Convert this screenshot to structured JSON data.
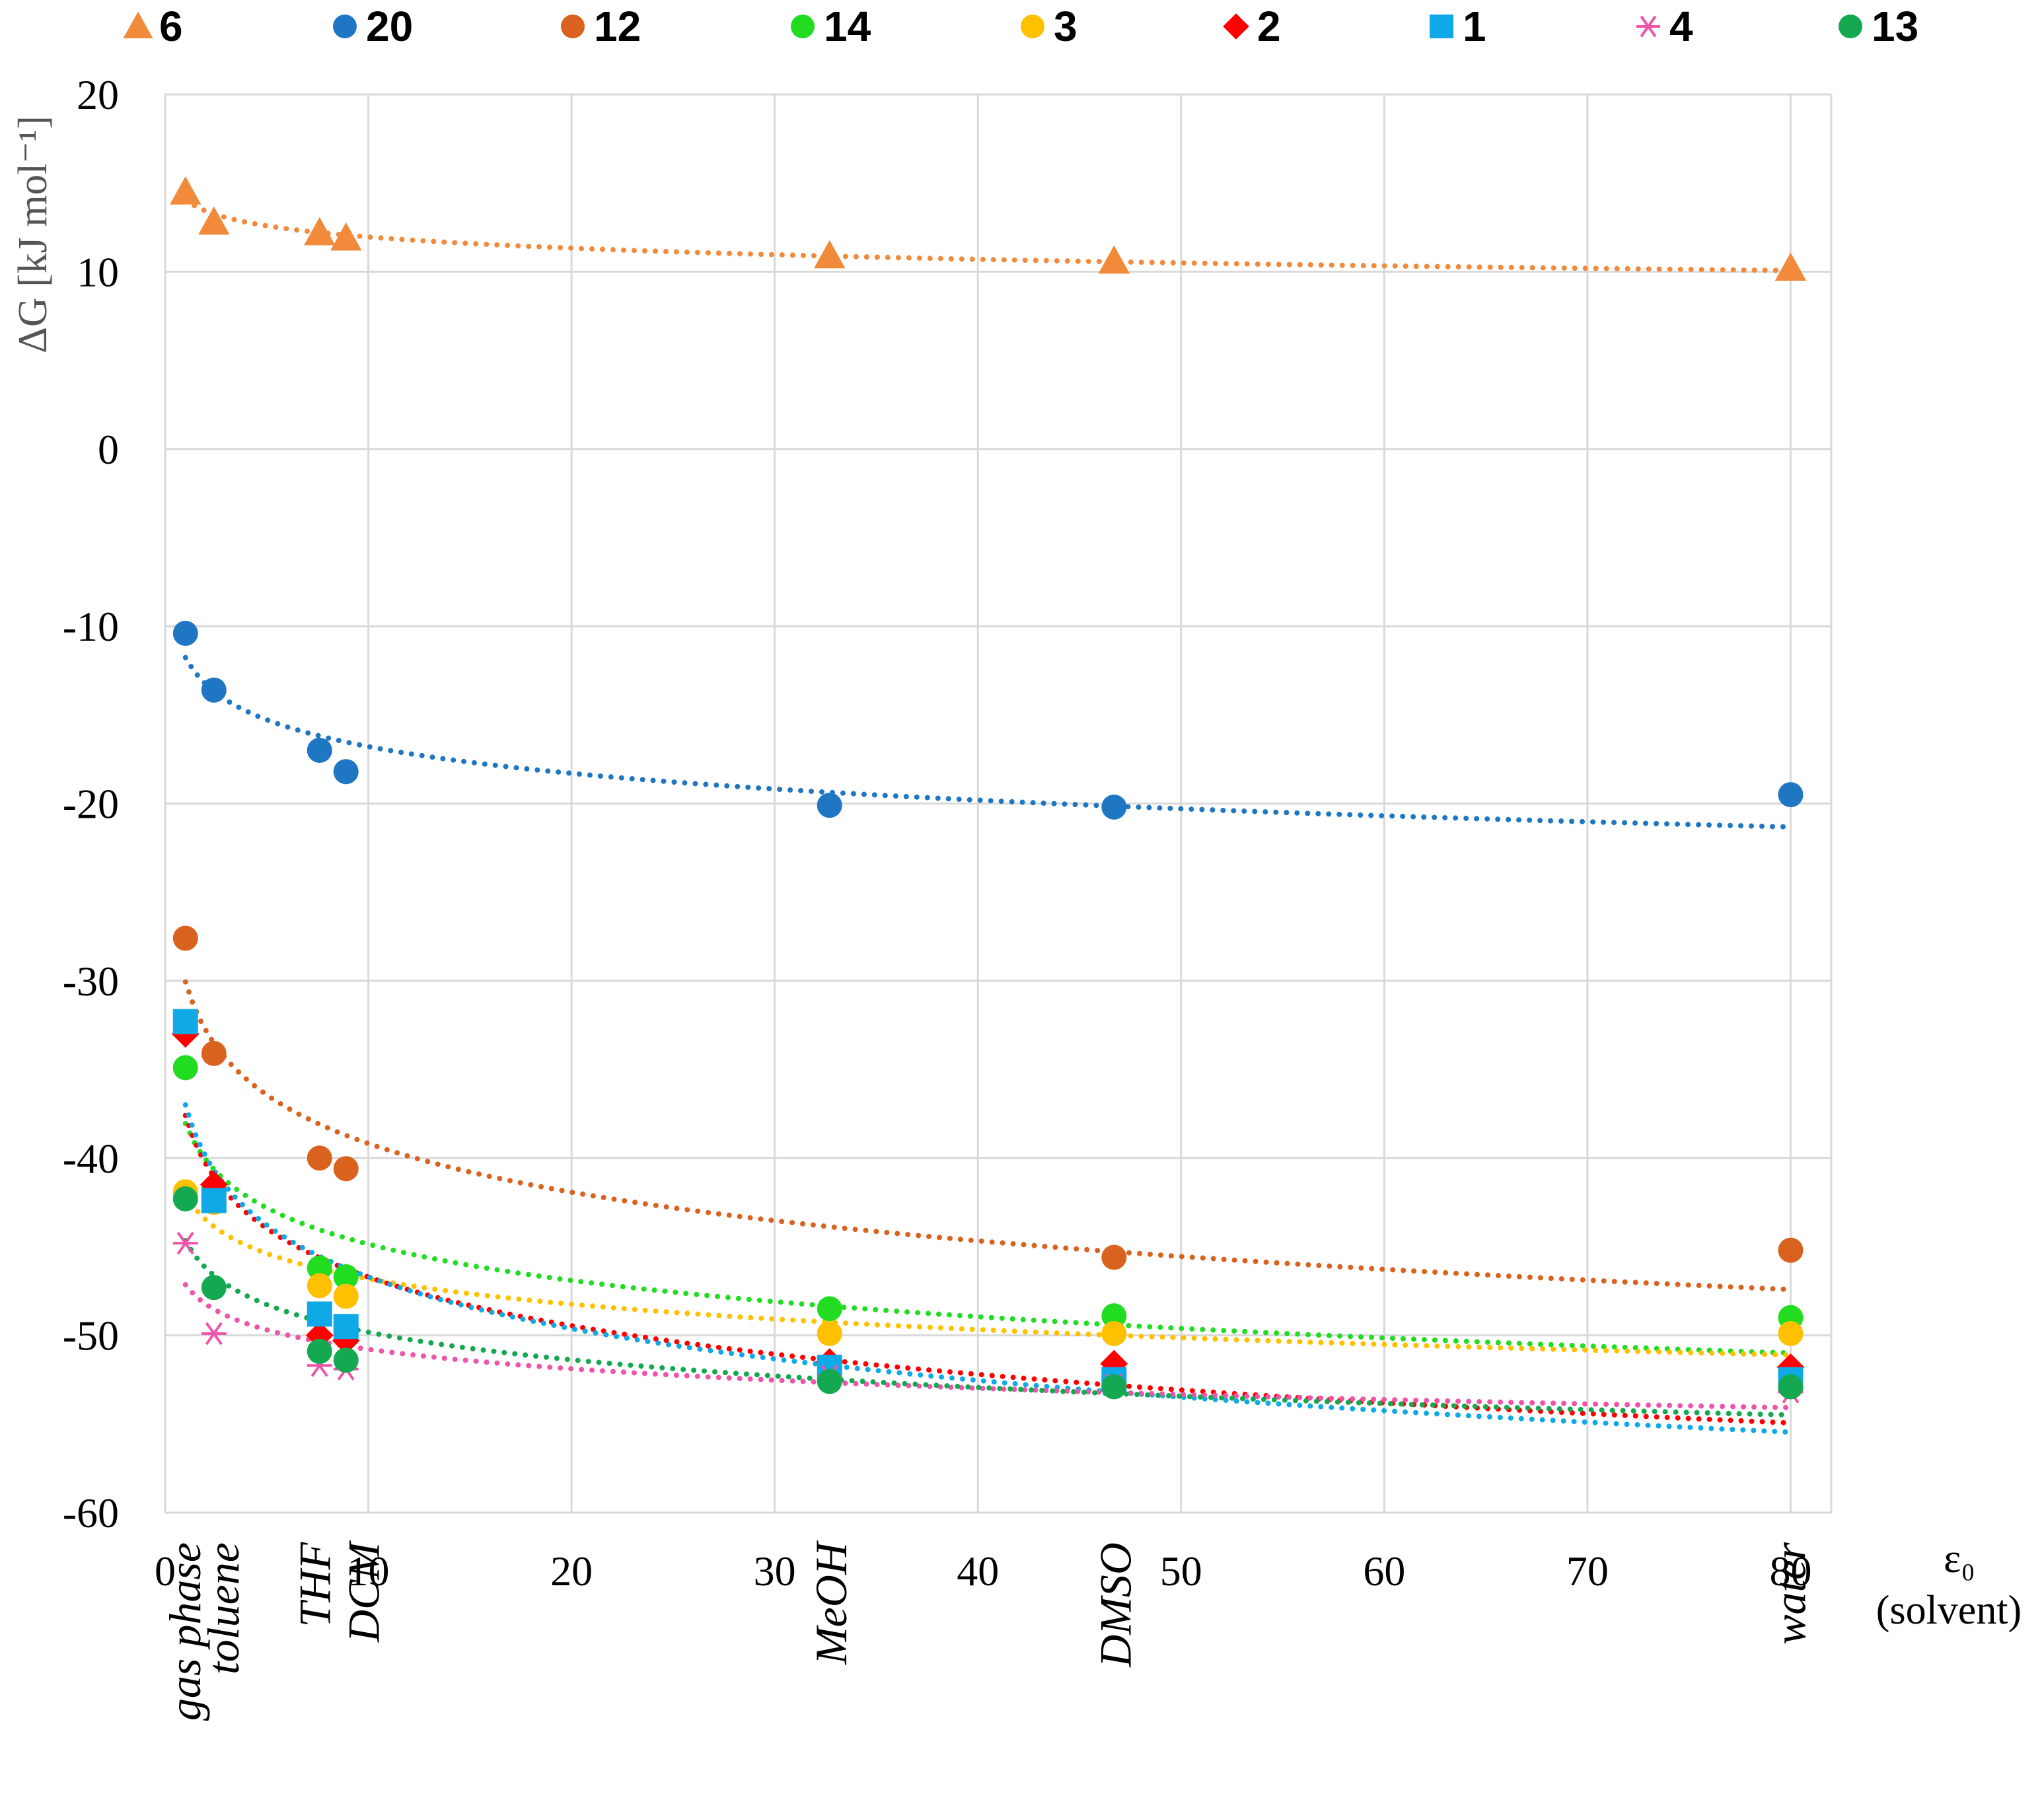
{
  "chart_data": {
    "type": "scatter",
    "title": "",
    "xlabel": "ε0 (solvent)",
    "xlabel_line1": "ε₀",
    "xlabel_line2": "(solvent)",
    "ylabel": "ΔG [kJ mol⁻¹]",
    "xlim": [
      0,
      82
    ],
    "ylim": [
      -60,
      20
    ],
    "x_ticks": [
      0,
      10,
      20,
      30,
      40,
      50,
      60,
      70,
      80
    ],
    "y_ticks": [
      -60,
      -50,
      -40,
      -30,
      -20,
      -10,
      0,
      10,
      20
    ],
    "grid": true,
    "legend_position": "top",
    "trendline": "logarithmic, dotted",
    "solvents": [
      {
        "name": "gas phase",
        "eps": 1
      },
      {
        "name": "toluene",
        "eps": 2.4
      },
      {
        "name": "THF",
        "eps": 7.6
      },
      {
        "name": "DCM",
        "eps": 8.9
      },
      {
        "name": "MeOH",
        "eps": 32.7
      },
      {
        "name": "DMSO",
        "eps": 46.7
      },
      {
        "name": "water",
        "eps": 80
      }
    ],
    "x": [
      1,
      2.4,
      7.6,
      8.9,
      32.7,
      46.7,
      80
    ],
    "series": [
      {
        "name": "6",
        "marker": "triangle",
        "color": "#f28a3c",
        "values": [
          14.5,
          12.8,
          12.2,
          11.9,
          10.9,
          10.6,
          10.2
        ]
      },
      {
        "name": "20",
        "marker": "circle",
        "color": "#1f76c2",
        "values": [
          -10.4,
          -13.6,
          -17.0,
          -18.2,
          -20.1,
          -20.2,
          -19.5
        ]
      },
      {
        "name": "12",
        "marker": "circle",
        "color": "#d9621f",
        "values": [
          -27.6,
          -34.1,
          -40.0,
          -40.6,
          null,
          -45.6,
          -45.2
        ]
      },
      {
        "name": "14",
        "marker": "circle",
        "color": "#22dc22",
        "values": [
          -34.9,
          -41.8,
          -46.2,
          -46.7,
          -48.5,
          -48.9,
          -49.0
        ]
      },
      {
        "name": "3",
        "marker": "circle",
        "color": "#ffc000",
        "values": [
          -41.9,
          -42.5,
          -47.2,
          -47.8,
          -49.9,
          -49.9,
          -49.9
        ]
      },
      {
        "name": "2",
        "marker": "diamond",
        "color": "#ff0000",
        "values": [
          -33.0,
          -41.5,
          -50.0,
          -50.3,
          -51.5,
          -51.6,
          -51.8
        ]
      },
      {
        "name": "1",
        "marker": "square",
        "color": "#10a9e8",
        "values": [
          -32.3,
          -42.4,
          -48.8,
          -49.5,
          -51.8,
          -52.5,
          -52.5
        ]
      },
      {
        "name": "4",
        "marker": "asterisk",
        "color": "#ee55aa",
        "values": [
          -44.8,
          -49.9,
          -51.7,
          -51.9,
          -52.3,
          -52.8,
          -53.2
        ]
      },
      {
        "name": "13",
        "marker": "circle",
        "color": "#14a850",
        "values": [
          -42.3,
          -47.3,
          -50.9,
          -51.4,
          -52.6,
          -52.9,
          -52.9
        ]
      }
    ]
  }
}
